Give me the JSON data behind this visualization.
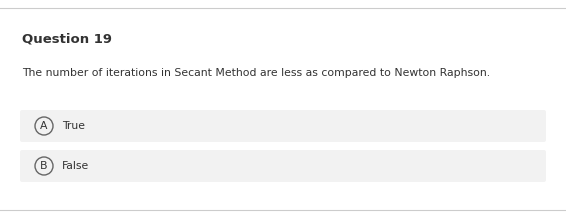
{
  "title": "Question 19",
  "question": "The number of iterations in Secant Method are less as compared to Newton Raphson.",
  "options": [
    {
      "label": "A",
      "text": "True"
    },
    {
      "label": "B",
      "text": "False"
    }
  ],
  "bg_color": "#ffffff",
  "option_bg_color": "#f2f2f2",
  "border_color": "#cccccc",
  "title_fontsize": 9.5,
  "question_fontsize": 7.8,
  "option_fontsize": 7.8,
  "text_color": "#333333",
  "circle_edge_color": "#666666",
  "line_color": "#cccccc"
}
